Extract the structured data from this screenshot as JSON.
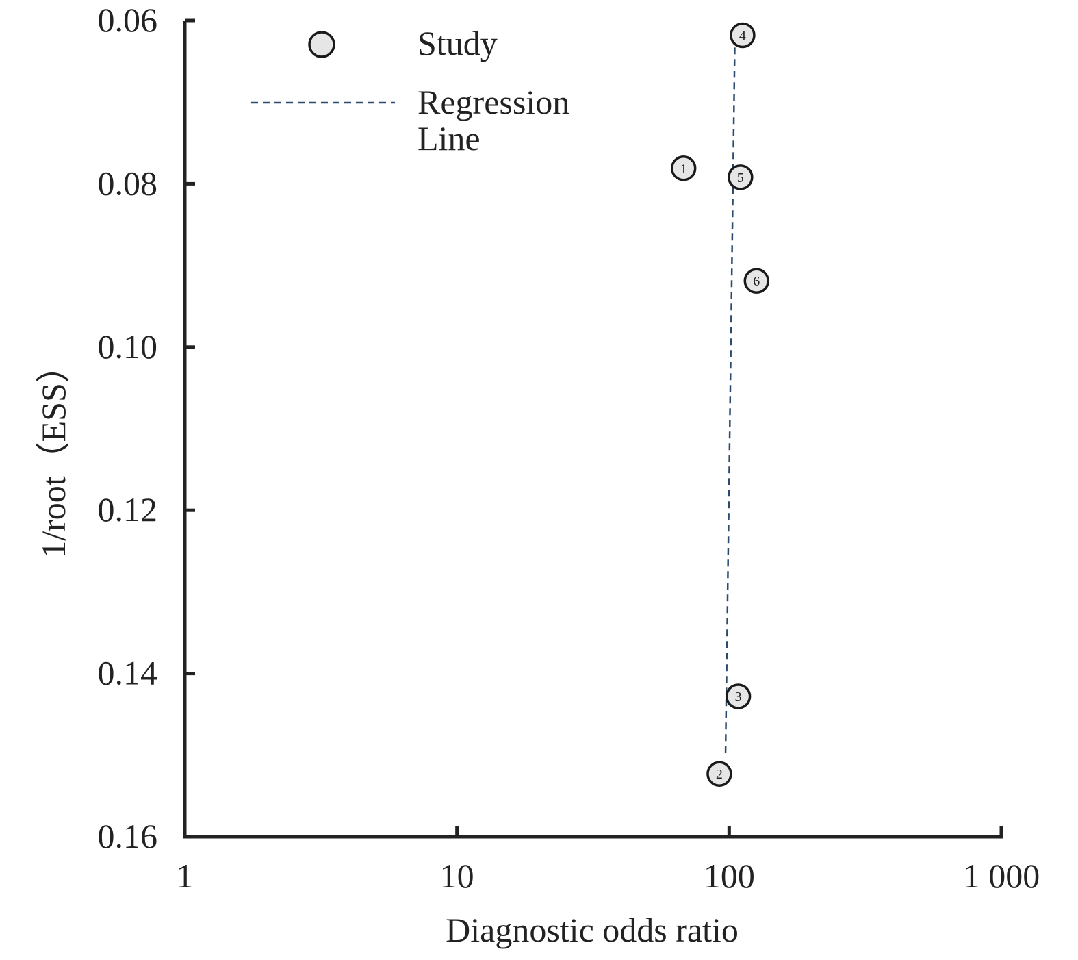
{
  "chart_data": {
    "type": "scatter",
    "title": "",
    "xlabel": "Diagnostic odds ratio",
    "ylabel": "1/root（ESS）",
    "x_scale": "log",
    "xlim": [
      1,
      1000
    ],
    "ylim": [
      0.16,
      0.06
    ],
    "y_inverted": true,
    "x_ticks": [
      {
        "value": 1,
        "label": "1"
      },
      {
        "value": 10,
        "label": "10"
      },
      {
        "value": 100,
        "label": "100"
      },
      {
        "value": 1000,
        "label": "1 000"
      }
    ],
    "y_ticks": [
      {
        "value": 0.06,
        "label": "0.06"
      },
      {
        "value": 0.08,
        "label": "0.08"
      },
      {
        "value": 0.1,
        "label": "0.10"
      },
      {
        "value": 0.12,
        "label": "0.12"
      },
      {
        "value": 0.14,
        "label": "0.14"
      },
      {
        "value": 0.16,
        "label": "0.16"
      }
    ],
    "grid": false,
    "legend_position": "top-left",
    "legend": [
      {
        "label": "Study",
        "kind": "marker"
      },
      {
        "label": "Regression Line",
        "kind": "dashed-line",
        "lines": [
          "Regression",
          "Line"
        ]
      }
    ],
    "points": [
      {
        "label": "1",
        "x": 68,
        "y": 0.0781
      },
      {
        "label": "2",
        "x": 92,
        "y": 0.1523
      },
      {
        "label": "3",
        "x": 108,
        "y": 0.1428
      },
      {
        "label": "4",
        "x": 112,
        "y": 0.0618
      },
      {
        "label": "5",
        "x": 110,
        "y": 0.0792
      },
      {
        "label": "6",
        "x": 126,
        "y": 0.0919
      }
    ],
    "regression_line": {
      "x": [
        97,
        105
      ],
      "y": [
        0.1497,
        0.0615
      ]
    },
    "colors": {
      "axis": "#222222",
      "marker_fill": "#e6e6e6",
      "marker_stroke": "#1a1a1a",
      "regression": "#2d4a6e"
    }
  }
}
